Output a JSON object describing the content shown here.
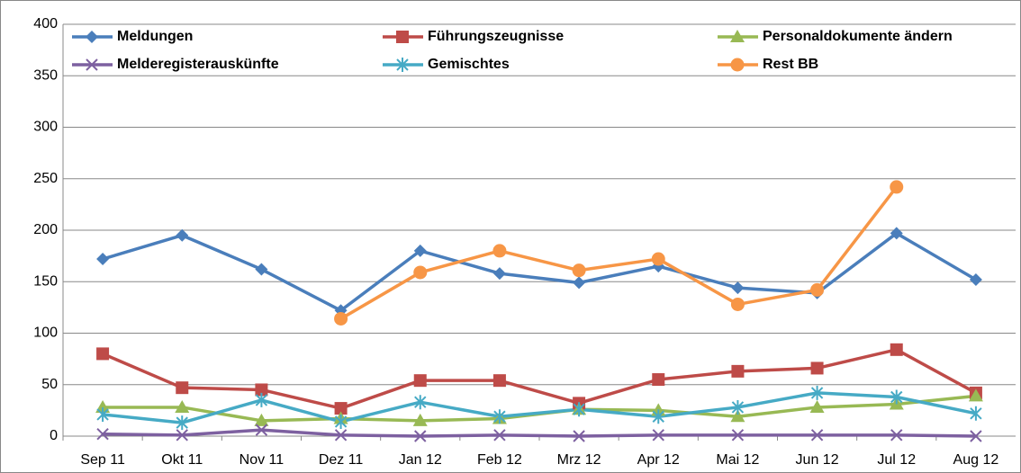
{
  "chart_data": {
    "type": "line",
    "categories": [
      "Sep 11",
      "Okt 11",
      "Nov 11",
      "Dez 11",
      "Jan 12",
      "Feb 12",
      "Mrz 12",
      "Apr 12",
      "Mai 12",
      "Jun 12",
      "Jul 12",
      "Aug 12"
    ],
    "ylim": [
      0,
      400
    ],
    "yticks": [
      0,
      50,
      100,
      150,
      200,
      250,
      300,
      350,
      400
    ],
    "grid": true,
    "series": [
      {
        "name": "Meldungen",
        "color": "#4a7ebb",
        "marker": "diamond",
        "values": [
          172,
          195,
          162,
          122,
          180,
          158,
          149,
          165,
          144,
          139,
          197,
          152
        ]
      },
      {
        "name": "Führungszeugnisse",
        "color": "#be4b48",
        "marker": "square",
        "values": [
          80,
          47,
          45,
          27,
          54,
          54,
          32,
          55,
          63,
          66,
          84,
          42
        ]
      },
      {
        "name": "Personaldokumente ändern",
        "color": "#98b954",
        "marker": "triangle",
        "values": [
          28,
          28,
          15,
          17,
          15,
          17,
          26,
          25,
          19,
          28,
          31,
          39
        ]
      },
      {
        "name": "Melderegisterauskünfte",
        "color": "#7d60a0",
        "marker": "x",
        "values": [
          2,
          1,
          6,
          1,
          0,
          1,
          0,
          1,
          1,
          1,
          1,
          0
        ]
      },
      {
        "name": "Gemischtes",
        "color": "#46aac5",
        "marker": "star",
        "values": [
          21,
          13,
          35,
          14,
          33,
          19,
          26,
          19,
          28,
          42,
          38,
          22
        ]
      },
      {
        "name": "Rest BB",
        "color": "#f79646",
        "marker": "circle",
        "values": [
          null,
          null,
          null,
          114,
          159,
          180,
          161,
          172,
          128,
          142,
          242,
          null
        ]
      }
    ]
  }
}
